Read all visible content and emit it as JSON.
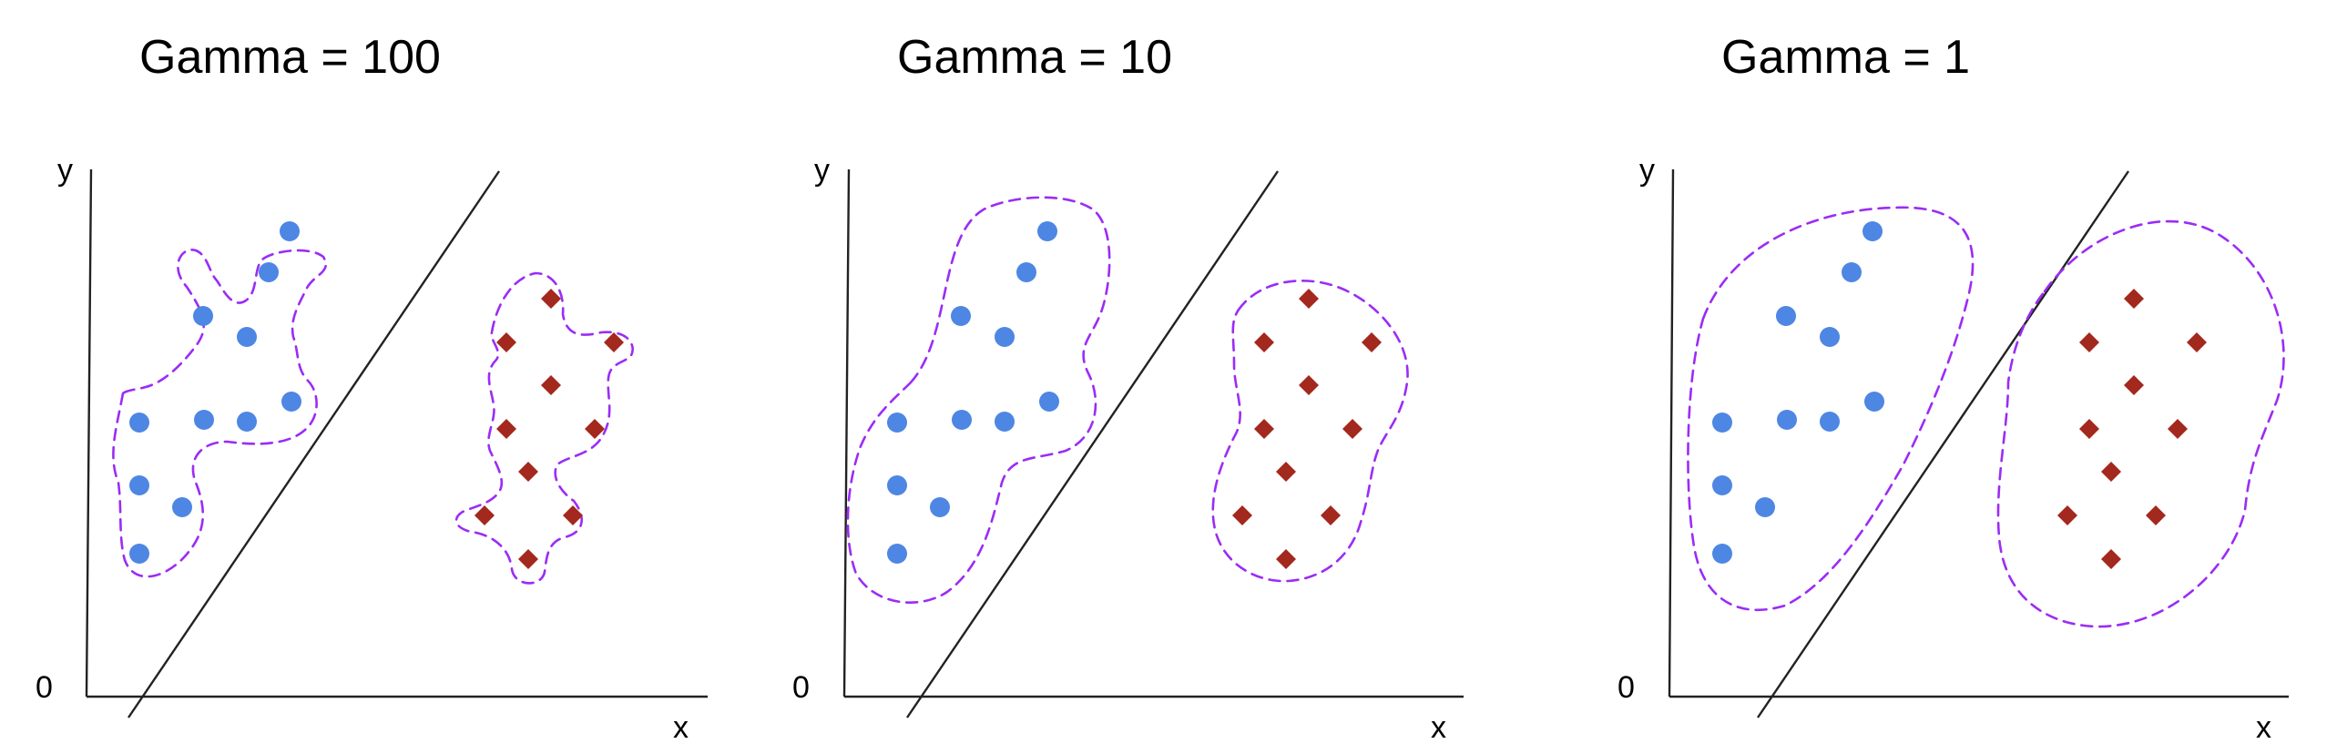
{
  "colors": {
    "class_a": "#4E86E4",
    "class_b": "#A3281D",
    "boundary": "#9B2CF5",
    "axis": "#222222"
  },
  "marker_shapes": {
    "class_a": "circle",
    "class_b": "diamond"
  },
  "panels": [
    {
      "title": "Gamma = 100",
      "x_axis_label": "x",
      "y_axis_label": "y",
      "origin_label": "0",
      "boundary_style": "tight-wiggly"
    },
    {
      "title": "Gamma = 10",
      "x_axis_label": "x",
      "y_axis_label": "y",
      "origin_label": "0",
      "boundary_style": "moderate"
    },
    {
      "title": "Gamma = 1",
      "x_axis_label": "x",
      "y_axis_label": "y",
      "origin_label": "0",
      "boundary_style": "smooth"
    }
  ]
}
